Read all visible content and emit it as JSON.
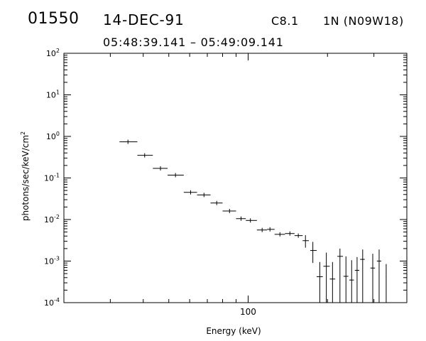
{
  "header": {
    "event_id": "01550",
    "date": "14-DEC-91",
    "flare_class": "C8.1",
    "location": "1N (N09W18)",
    "time_range": "05:48:39.141 – 05:49:09.141"
  },
  "chart_data": {
    "type": "scatter",
    "title": "",
    "xlabel": "Energy (keV)",
    "ylabel": "photons/sec/keV/cm²",
    "xscale": "log",
    "yscale": "log",
    "xlim": [
      20,
      400
    ],
    "ylim": [
      0.0001,
      100
    ],
    "x_tick_labels": [
      {
        "value": 100,
        "label": "100"
      }
    ],
    "y_tick_labels": [
      {
        "value": 0.0001,
        "base": "10",
        "exp": "-4"
      },
      {
        "value": 0.001,
        "base": "10",
        "exp": "-3"
      },
      {
        "value": 0.01,
        "base": "10",
        "exp": "-2"
      },
      {
        "value": 0.1,
        "base": "10",
        "exp": "-1"
      },
      {
        "value": 1,
        "base": "10",
        "exp": "0"
      },
      {
        "value": 10,
        "base": "10",
        "exp": "1"
      },
      {
        "value": 100,
        "base": "10",
        "exp": "2"
      }
    ],
    "grid": false,
    "series": [
      {
        "points": [
          {
            "x": 35.0,
            "y": 0.74,
            "xerr": [
              32.5,
              38.0
            ]
          },
          {
            "x": 40.5,
            "y": 0.35,
            "xerr": [
              38.0,
              43.5
            ]
          },
          {
            "x": 46.5,
            "y": 0.17,
            "xerr": [
              43.5,
              49.5
            ]
          },
          {
            "x": 53.0,
            "y": 0.117,
            "xerr": [
              49.5,
              57.0
            ]
          },
          {
            "x": 60.5,
            "y": 0.045,
            "xerr": [
              57.0,
              64.0
            ]
          },
          {
            "x": 68.0,
            "y": 0.039,
            "xerr": [
              64.0,
              72.0
            ]
          },
          {
            "x": 76.0,
            "y": 0.025,
            "xerr": [
              72.0,
              80.0
            ]
          },
          {
            "x": 85.0,
            "y": 0.016,
            "xerr": [
              80.0,
              90.0
            ]
          },
          {
            "x": 94.0,
            "y": 0.0105,
            "xerr": [
              90.0,
              98.0
            ]
          },
          {
            "x": 102.0,
            "y": 0.0095,
            "xerr": [
              98.0,
              108.0
            ]
          },
          {
            "x": 113.0,
            "y": 0.0056,
            "xerr": [
              108.0,
              118.0
            ]
          },
          {
            "x": 121.0,
            "y": 0.0058,
            "xerr": [
              118.0,
              126.0
            ]
          },
          {
            "x": 132.0,
            "y": 0.0044,
            "xerr": [
              126.0,
              138.0
            ]
          },
          {
            "x": 144.0,
            "y": 0.0046,
            "xerr": [
              138.0,
              150.0
            ]
          },
          {
            "x": 155.0,
            "y": 0.0041,
            "xerr": [
              150.0,
              161.0
            ]
          },
          {
            "x": 165.0,
            "y": 0.0031,
            "xerr": [
              161.0,
              170.0
            ],
            "yerr": [
              0.0021,
              0.0042
            ]
          },
          {
            "x": 176.0,
            "y": 0.0018,
            "xerr": [
              172.0,
              182.0
            ],
            "yerr": [
              0.0009,
              0.0029
            ]
          },
          {
            "x": 187.0,
            "y": 0.00042,
            "xerr": [
              182.0,
              192.0
            ],
            "yerr": [
              0.0001,
              0.00095
            ]
          },
          {
            "x": 198.0,
            "y": 0.00075,
            "xerr": [
              193.0,
              204.0
            ],
            "yerr": [
              0.0001,
              0.0016
            ]
          },
          {
            "x": 209.0,
            "y": 0.00037,
            "xerr": [
              204.0,
              214.0
            ],
            "yerr": [
              0.0001,
              0.00095
            ]
          },
          {
            "x": 223.0,
            "y": 0.0013,
            "xerr": [
              218.0,
              229.0
            ],
            "yerr": [
              0.0001,
              0.002
            ]
          },
          {
            "x": 235.0,
            "y": 0.00043,
            "xerr": [
              230.0,
              240.0
            ],
            "yerr": [
              0.0001,
              0.0013
            ]
          },
          {
            "x": 247.0,
            "y": 0.00035,
            "xerr": [
              242.0,
              252.0
            ],
            "yerr": [
              0.0001,
              0.00105
            ]
          },
          {
            "x": 259.0,
            "y": 0.0006,
            "xerr": [
              254.0,
              264.0
            ],
            "yerr": [
              0.0001,
              0.00125
            ]
          },
          {
            "x": 272.0,
            "y": 0.0011,
            "xerr": [
              266.0,
              277.0
            ],
            "yerr": [
              0.0001,
              0.0019
            ]
          },
          {
            "x": 297.0,
            "y": 0.00068,
            "xerr": [
              291.0,
              303.0
            ],
            "yerr": [
              0.0001,
              0.0015
            ]
          },
          {
            "x": 314.0,
            "y": 0.001,
            "xerr": [
              308.0,
              320.0
            ],
            "yerr": [
              0.0001,
              0.0019
            ]
          },
          {
            "x": 334.0,
            "y": 0.00042,
            "xerr": [
              333.0,
              335.0
            ],
            "yerr": [
              0.0001,
              0.00085
            ]
          }
        ]
      }
    ]
  }
}
